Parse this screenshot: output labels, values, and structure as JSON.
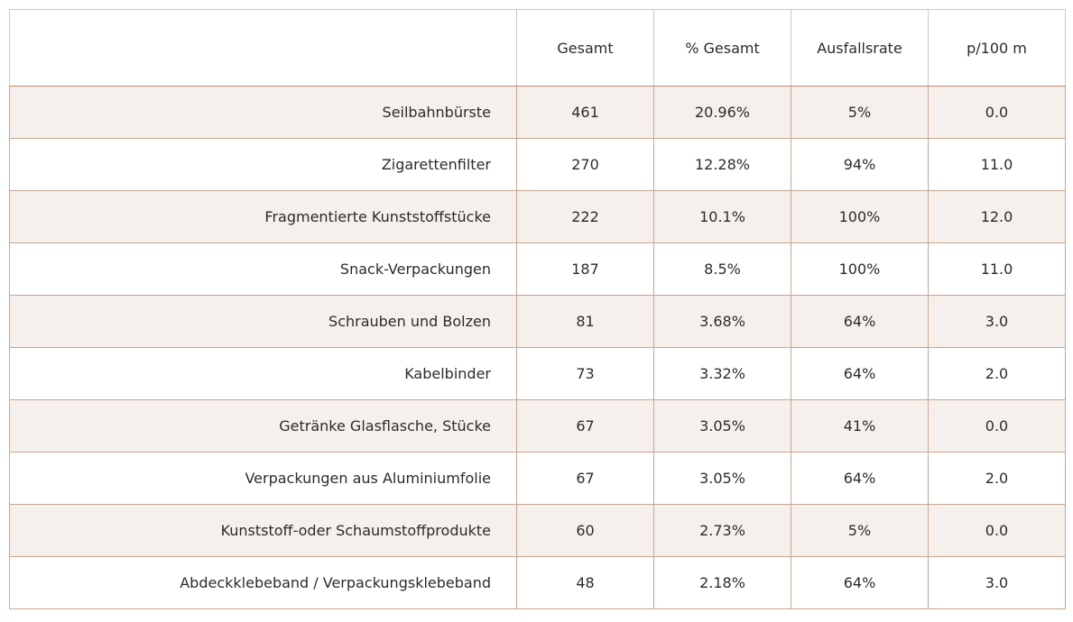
{
  "chart_data": {
    "type": "table",
    "columns": [
      "",
      "Gesamt",
      "% Gesamt",
      "Ausfallsrate",
      "p/100 m"
    ],
    "rows": [
      [
        "Seilbahnbürste",
        "461",
        "20.96%",
        "5%",
        "0.0"
      ],
      [
        "Zigarettenfilter",
        "270",
        "12.28%",
        "94%",
        "11.0"
      ],
      [
        "Fragmentierte Kunststoffstücke",
        "222",
        "10.1%",
        "100%",
        "12.0"
      ],
      [
        "Snack-Verpackungen",
        "187",
        "8.5%",
        "100%",
        "11.0"
      ],
      [
        "Schrauben und Bolzen",
        "81",
        "3.68%",
        "64%",
        "3.0"
      ],
      [
        "Kabelbinder",
        "73",
        "3.32%",
        "64%",
        "2.0"
      ],
      [
        "Getränke Glasflasche, Stücke",
        "67",
        "3.05%",
        "41%",
        "0.0"
      ],
      [
        "Verpackungen aus Aluminiumfolie",
        "67",
        "3.05%",
        "64%",
        "2.0"
      ],
      [
        "Kunststoff-oder Schaumstoffprodukte",
        "60",
        "2.73%",
        "5%",
        "0.0"
      ],
      [
        "Abdeckklebeband / Verpackungsklebeband",
        "48",
        "2.18%",
        "64%",
        "3.0"
      ]
    ]
  },
  "colors": {
    "border": "#c7a58f",
    "shaded_row": "#f5f0ec",
    "text": "#2b2b2b"
  }
}
